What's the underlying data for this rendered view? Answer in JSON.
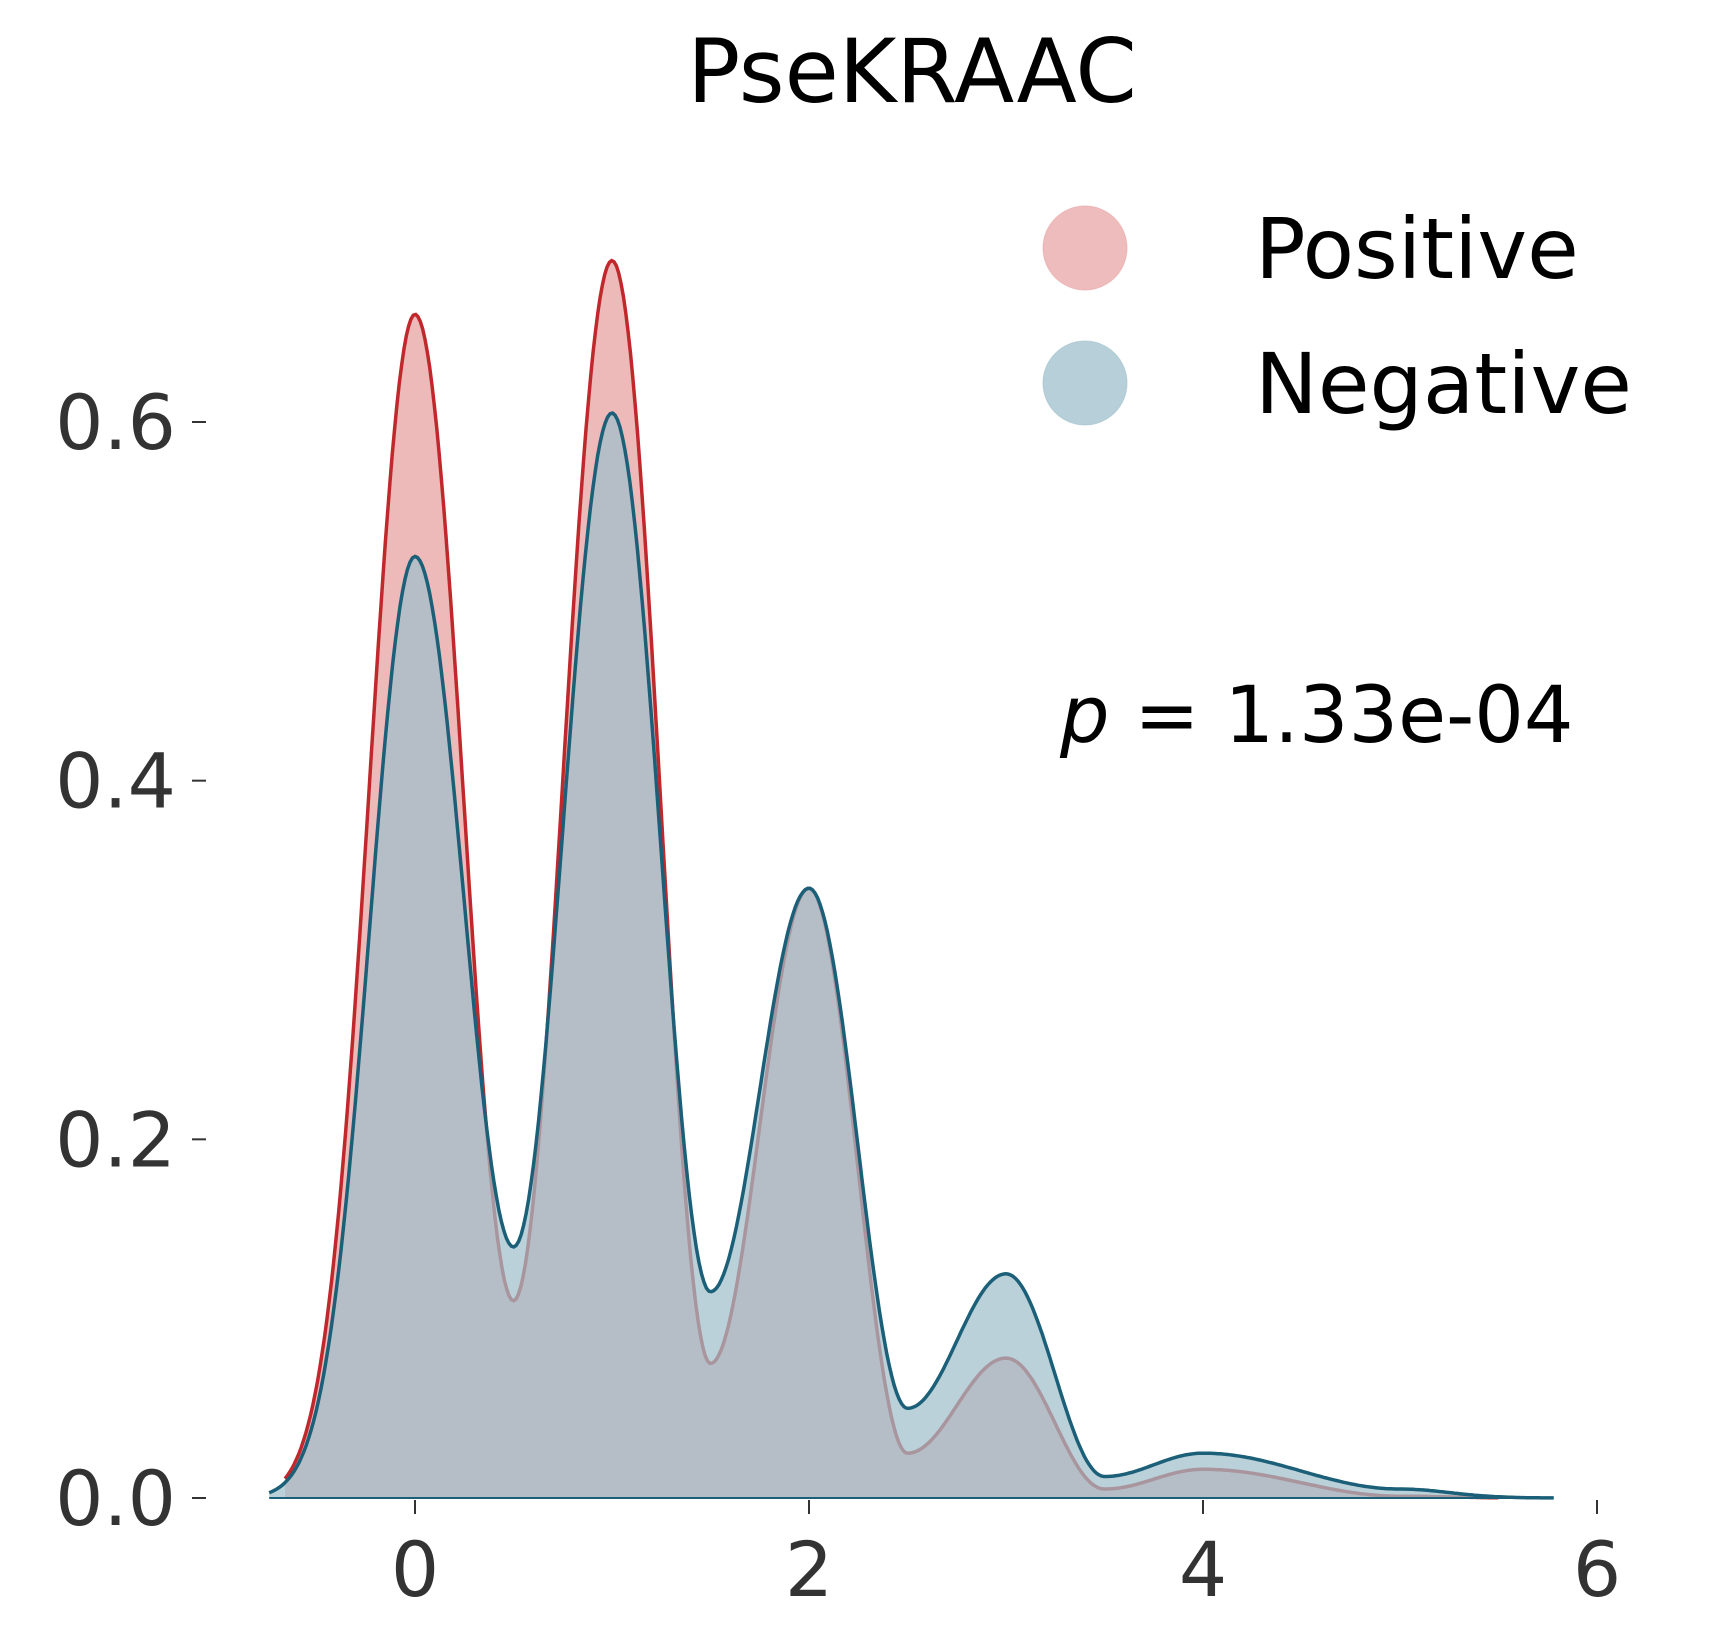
{
  "chart_data": {
    "type": "area",
    "title": "PseKRAAC",
    "xlabel": "",
    "ylabel": "",
    "xlim": [
      -0.9,
      6
    ],
    "ylim": [
      0,
      0.75
    ],
    "xticks": [
      0,
      2,
      4,
      6
    ],
    "yticks": [
      0.0,
      0.2,
      0.4,
      0.6
    ],
    "xtick_labels": [
      "0",
      "2",
      "4",
      "6"
    ],
    "ytick_labels": [
      "0.0",
      "0.2",
      "0.4",
      "0.6"
    ],
    "grid": false,
    "legend_position": "top-right",
    "series": [
      {
        "name": "Positive",
        "fill_color": "#e8a5a5",
        "line_color": "#c0282c",
        "x_range": [
          -0.66,
          5.5
        ],
        "peaks": [
          {
            "x": 0,
            "y": 0.66
          },
          {
            "x": 1,
            "y": 0.69
          },
          {
            "x": 2,
            "y": 0.34
          },
          {
            "x": 3,
            "y": 0.078
          },
          {
            "x": 4,
            "y": 0.016
          },
          {
            "x": 5,
            "y": 0.001
          }
        ],
        "troughs": [
          {
            "x": 0.5,
            "y": 0.11
          },
          {
            "x": 1.5,
            "y": 0.075
          },
          {
            "x": 2.5,
            "y": 0.025
          },
          {
            "x": 3.5,
            "y": 0.005
          }
        ]
      },
      {
        "name": "Negative",
        "fill_color": "#9fbfcb",
        "line_color": "#1b5f78",
        "x_range": [
          -0.74,
          5.78
        ],
        "peaks": [
          {
            "x": 0,
            "y": 0.525
          },
          {
            "x": 1,
            "y": 0.605
          },
          {
            "x": 2,
            "y": 0.34
          },
          {
            "x": 3,
            "y": 0.125
          },
          {
            "x": 4,
            "y": 0.025
          },
          {
            "x": 5,
            "y": 0.005
          }
        ],
        "troughs": [
          {
            "x": 0.5,
            "y": 0.14
          },
          {
            "x": 1.5,
            "y": 0.115
          },
          {
            "x": 2.5,
            "y": 0.05
          },
          {
            "x": 3.5,
            "y": 0.012
          }
        ]
      }
    ],
    "annotation": {
      "prefix": "p",
      "text": " = 1.33e-04"
    }
  }
}
